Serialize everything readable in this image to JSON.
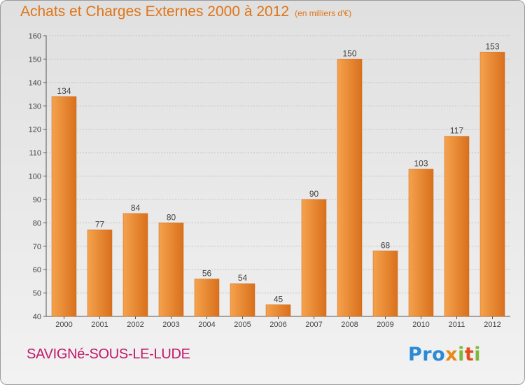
{
  "header": {
    "title": "Achats et Charges Externes 2000 à 2012",
    "unit_note": "(en milliers d'€)"
  },
  "footer": {
    "commune": "SAVIGNé-SOUS-LE-LUDE",
    "logo_text": "Proxiti",
    "logo_parts": [
      "Pro",
      "x",
      "i",
      "t",
      "i"
    ]
  },
  "colors": {
    "bar_light": "#f5a24d",
    "bar_dark": "#d9701c",
    "title": "#e07418",
    "commune": "#c2186a",
    "grid": "#c4c4c4"
  },
  "chart_data": {
    "type": "bar",
    "title": "Achats et Charges Externes 2000 à 2012",
    "subtitle": "(en milliers d'€)",
    "xlabel": "",
    "ylabel": "",
    "categories": [
      "2000",
      "2001",
      "2002",
      "2003",
      "2004",
      "2005",
      "2006",
      "2007",
      "2008",
      "2009",
      "2010",
      "2011",
      "2012"
    ],
    "values": [
      134,
      77,
      84,
      80,
      56,
      54,
      45,
      90,
      150,
      68,
      103,
      117,
      153
    ],
    "ylim": [
      40,
      160
    ],
    "yticks": [
      40,
      50,
      60,
      70,
      80,
      90,
      100,
      110,
      120,
      130,
      140,
      150,
      160
    ],
    "grid": true,
    "data_labels": true
  }
}
